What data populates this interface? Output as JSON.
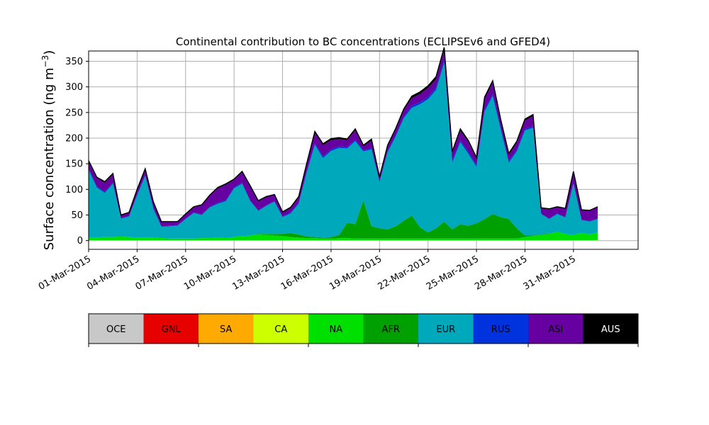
{
  "chart_data": {
    "type": "area",
    "title": "Continental contribution to BC concentrations (ECLIPSEv6 and GFED4)",
    "ylabel": "Surface concentration (ng m",
    "ylabel_sup": "−3",
    "ylabel_close": ")",
    "xlabel": "",
    "stacked": true,
    "grid": true,
    "ylim": [
      -17,
      370
    ],
    "xlim": [
      "2015-02-29T00:00",
      "2015-04-04T00:00"
    ],
    "y_ticks": [
      0,
      50,
      100,
      150,
      200,
      250,
      300,
      350
    ],
    "x_ticks": [
      "01-Mar-2015",
      "04-Mar-2015",
      "07-Mar-2015",
      "10-Mar-2015",
      "13-Mar-2015",
      "16-Mar-2015",
      "19-Mar-2015",
      "22-Mar-2015",
      "25-Mar-2015",
      "28-Mar-2015",
      "31-Mar-2015"
    ],
    "x": [
      "01-Mar-2015",
      "01-Mar-2015 12:00",
      "02-Mar-2015",
      "02-Mar-2015 12:00",
      "03-Mar-2015",
      "03-Mar-2015 12:00",
      "04-Mar-2015",
      "04-Mar-2015 12:00",
      "05-Mar-2015",
      "05-Mar-2015 12:00",
      "06-Mar-2015",
      "06-Mar-2015 12:00",
      "07-Mar-2015",
      "07-Mar-2015 12:00",
      "08-Mar-2015",
      "08-Mar-2015 12:00",
      "09-Mar-2015",
      "09-Mar-2015 12:00",
      "10-Mar-2015",
      "10-Mar-2015 12:00",
      "11-Mar-2015",
      "11-Mar-2015 12:00",
      "12-Mar-2015",
      "12-Mar-2015 12:00",
      "13-Mar-2015",
      "13-Mar-2015 12:00",
      "14-Mar-2015",
      "14-Mar-2015 12:00",
      "15-Mar-2015",
      "15-Mar-2015 12:00",
      "16-Mar-2015",
      "16-Mar-2015 12:00",
      "17-Mar-2015",
      "17-Mar-2015 12:00",
      "18-Mar-2015",
      "18-Mar-2015 12:00",
      "19-Mar-2015",
      "19-Mar-2015 12:00",
      "20-Mar-2015",
      "20-Mar-2015 12:00",
      "21-Mar-2015",
      "21-Mar-2015 12:00",
      "22-Mar-2015",
      "22-Mar-2015 12:00",
      "23-Mar-2015",
      "23-Mar-2015 12:00",
      "24-Mar-2015",
      "24-Mar-2015 12:00",
      "25-Mar-2015",
      "25-Mar-2015 12:00",
      "26-Mar-2015",
      "26-Mar-2015 12:00",
      "27-Mar-2015",
      "27-Mar-2015 12:00",
      "28-Mar-2015",
      "28-Mar-2015 12:00",
      "29-Mar-2015",
      "29-Mar-2015 12:00",
      "30-Mar-2015",
      "30-Mar-2015 12:00",
      "31-Mar-2015",
      "31-Mar-2015 12:00",
      "01-Apr-2015",
      "01-Apr-2015 12:00"
    ],
    "series": [
      {
        "name": "OCE",
        "color": "#c8c8c8",
        "values": [
          1,
          1,
          1,
          1,
          1,
          1,
          1,
          1,
          1,
          1,
          1,
          1,
          1,
          1,
          1,
          1,
          1,
          1,
          1,
          1,
          1,
          1,
          1,
          1,
          1,
          1,
          1,
          1,
          1,
          1,
          1,
          1,
          1,
          1,
          1,
          1,
          1,
          1,
          1,
          1,
          1,
          1,
          1,
          1,
          1,
          1,
          1,
          1,
          1,
          1,
          1,
          1,
          1,
          1,
          1,
          1,
          1,
          1,
          1,
          1,
          1,
          1,
          1,
          1
        ]
      },
      {
        "name": "GNL",
        "color": "#e60000",
        "values": [
          0,
          0,
          0,
          0,
          0,
          0,
          0,
          0,
          0,
          0,
          0,
          0,
          0,
          0,
          0,
          0,
          0,
          0,
          0,
          0,
          0,
          0,
          0,
          0,
          0,
          0,
          0,
          0,
          0,
          0,
          0,
          0,
          0,
          0,
          0,
          0,
          0,
          0,
          0,
          0,
          0,
          0,
          0,
          0,
          0,
          0,
          0,
          0,
          0,
          0,
          0,
          0,
          0,
          0,
          0,
          0,
          0,
          0,
          0,
          0,
          0,
          0,
          0,
          0
        ]
      },
      {
        "name": "SA",
        "color": "#ffaa00",
        "values": [
          0,
          0,
          0,
          0,
          0,
          0,
          0,
          0,
          0,
          0,
          0,
          0,
          0,
          0,
          0,
          0,
          0,
          0,
          0,
          0,
          0,
          0,
          0,
          0,
          0,
          0,
          0,
          0,
          0,
          0,
          0,
          0,
          0,
          0,
          0,
          0,
          0,
          0,
          0,
          0,
          0,
          0,
          0,
          0,
          0,
          0,
          0,
          0,
          0,
          0,
          0,
          0,
          0,
          0,
          0,
          0,
          0,
          0,
          0,
          0,
          0,
          0,
          0,
          0
        ]
      },
      {
        "name": "CA",
        "color": "#ccff00",
        "values": [
          0,
          0,
          0,
          0,
          0,
          0,
          0,
          0,
          0,
          0,
          0,
          0,
          0,
          0,
          0,
          0,
          0,
          0,
          0,
          0,
          0,
          0,
          0,
          0,
          0,
          0,
          0,
          0,
          0,
          0,
          0,
          0,
          0,
          0,
          0,
          0,
          0,
          0,
          0,
          0,
          0,
          0,
          0,
          0,
          0,
          0,
          0,
          0,
          0,
          0,
          0,
          0,
          0,
          0,
          0,
          0,
          0,
          0,
          0,
          0,
          0,
          0,
          0,
          0
        ]
      },
      {
        "name": "NA",
        "color": "#00e000",
        "values": [
          5,
          5,
          6,
          6,
          7,
          6,
          5,
          5,
          5,
          4,
          3,
          3,
          3,
          3,
          4,
          4,
          5,
          4,
          6,
          8,
          9,
          11,
          10,
          9,
          8,
          6,
          5,
          4,
          4,
          3,
          3,
          4,
          4,
          3,
          3,
          3,
          3,
          3,
          3,
          3,
          3,
          3,
          3,
          3,
          3,
          3,
          3,
          3,
          3,
          3,
          3,
          3,
          3,
          3,
          6,
          8,
          10,
          12,
          16,
          12,
          10,
          14,
          11,
          15
        ]
      },
      {
        "name": "AFR",
        "color": "#00a000",
        "values": [
          0,
          0,
          0,
          0,
          0,
          0,
          0,
          0,
          0,
          0,
          0,
          0,
          0,
          0,
          0,
          0,
          0,
          0,
          0,
          0,
          0,
          1,
          2,
          3,
          4,
          8,
          6,
          3,
          2,
          2,
          3,
          6,
          30,
          28,
          75,
          24,
          20,
          18,
          24,
          35,
          45,
          22,
          12,
          20,
          33,
          18,
          28,
          25,
          30,
          38,
          48,
          42,
          38,
          20,
          3,
          1,
          1,
          1,
          0,
          0,
          0,
          0,
          0,
          0
        ]
      },
      {
        "name": "EUR",
        "color": "#00a8bb",
        "values": [
          132,
          98,
          86,
          104,
          35,
          40,
          82,
          120,
          56,
          22,
          24,
          25,
          38,
          50,
          45,
          60,
          66,
          72,
          95,
          102,
          67,
          45,
          55,
          63,
          33,
          38,
          60,
          125,
          180,
          155,
          168,
          170,
          145,
          162,
          95,
          150,
          90,
          150,
          175,
          200,
          210,
          240,
          260,
          270,
          310,
          130,
          160,
          140,
          110,
          210,
          230,
          170,
          110,
          150,
          205,
          210,
          40,
          28,
          35,
          32,
          100,
          25,
          25,
          26
        ]
      },
      {
        "name": "RUS",
        "color": "#0033dd",
        "values": [
          2,
          2,
          2,
          2,
          1,
          1,
          2,
          2,
          2,
          1,
          1,
          1,
          1,
          1,
          1,
          1,
          2,
          2,
          2,
          2,
          1,
          1,
          1,
          1,
          1,
          2,
          2,
          2,
          3,
          3,
          3,
          3,
          2,
          3,
          2,
          3,
          2,
          3,
          3,
          3,
          4,
          4,
          4,
          5,
          5,
          3,
          4,
          3,
          3,
          4,
          4,
          3,
          3,
          3,
          3,
          3,
          1,
          1,
          1,
          1,
          2,
          1,
          1,
          1
        ]
      },
      {
        "name": "ASI",
        "color": "#6600a0",
        "values": [
          14,
          16,
          18,
          16,
          5,
          6,
          8,
          10,
          10,
          8,
          7,
          6,
          8,
          10,
          18,
          22,
          28,
          30,
          14,
          20,
          28,
          18,
          16,
          12,
          8,
          8,
          10,
          14,
          20,
          22,
          18,
          14,
          14,
          18,
          8,
          14,
          6,
          8,
          10,
          12,
          15,
          16,
          18,
          16,
          20,
          16,
          18,
          20,
          12,
          20,
          22,
          14,
          12,
          14,
          16,
          20,
          10,
          18,
          12,
          16,
          20,
          18,
          20,
          22
        ]
      },
      {
        "name": "AUS",
        "color": "#000000",
        "values": [
          2,
          2,
          2,
          2,
          1,
          1,
          2,
          2,
          2,
          1,
          1,
          1,
          1,
          1,
          1,
          1,
          2,
          2,
          2,
          2,
          1,
          1,
          1,
          1,
          1,
          2,
          2,
          2,
          3,
          3,
          3,
          3,
          2,
          3,
          2,
          3,
          2,
          3,
          3,
          3,
          4,
          4,
          4,
          5,
          5,
          3,
          4,
          3,
          3,
          4,
          4,
          3,
          3,
          3,
          3,
          3,
          1,
          1,
          1,
          1,
          2,
          1,
          1,
          1
        ]
      }
    ],
    "colorbar": {
      "labels": [
        "OCE",
        "GNL",
        "SA",
        "CA",
        "NA",
        "AFR",
        "EUR",
        "RUS",
        "ASI",
        "AUS"
      ],
      "colors": [
        "#c8c8c8",
        "#e60000",
        "#ffaa00",
        "#ccff00",
        "#00e000",
        "#00a000",
        "#00a8bb",
        "#0033dd",
        "#6600a0",
        "#000000"
      ]
    }
  }
}
